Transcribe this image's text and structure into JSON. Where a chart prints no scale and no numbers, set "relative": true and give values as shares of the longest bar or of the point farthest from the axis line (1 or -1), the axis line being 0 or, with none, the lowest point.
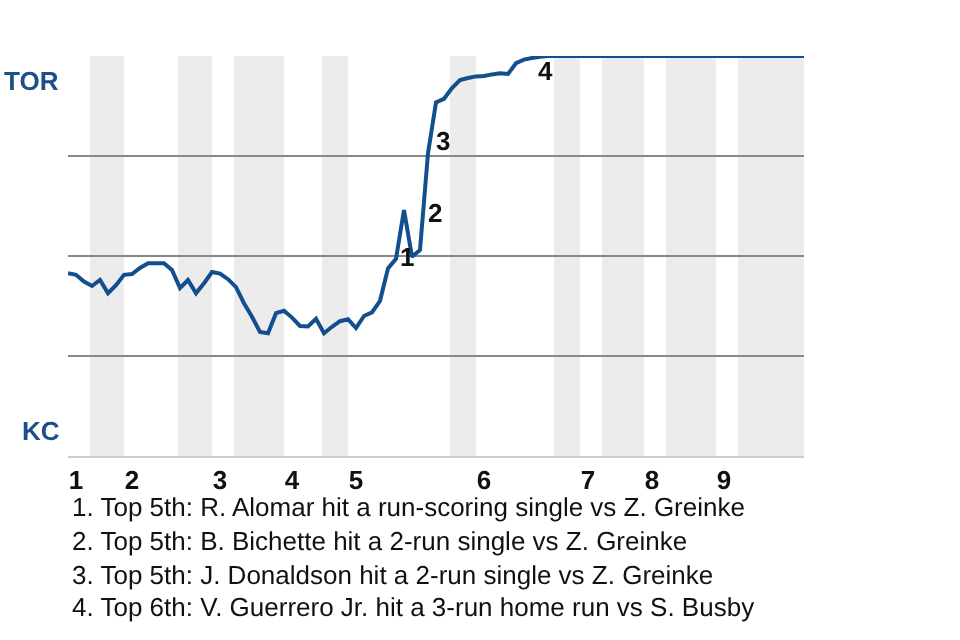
{
  "chart_data": {
    "type": "line",
    "relative": true,
    "categories": [
      null,
      "1",
      null,
      null,
      null,
      null,
      null,
      null,
      "2",
      null,
      null,
      null,
      null,
      null,
      null,
      null,
      null,
      null,
      null,
      "3",
      null,
      null,
      null,
      null,
      null,
      null,
      null,
      null,
      "4",
      null,
      null,
      null,
      null,
      null,
      null,
      null,
      "5",
      null,
      null,
      null,
      null,
      null,
      null,
      null,
      null,
      null,
      null,
      null,
      null,
      null,
      null,
      null,
      "6",
      null,
      null,
      null,
      null,
      null,
      null,
      null,
      null,
      null,
      null,
      null,
      null,
      "7",
      null,
      null,
      null,
      null,
      null,
      null,
      null,
      "8",
      null,
      null,
      null,
      null,
      null,
      null,
      null,
      null,
      "9",
      null,
      null,
      null,
      null,
      null,
      null,
      null,
      null,
      null,
      null
    ],
    "series": [
      {
        "color": "#134e8f",
        "values": [
          0.457,
          0.453,
          0.436,
          0.425,
          0.44,
          0.407,
          0.427,
          0.453,
          0.455,
          0.47,
          0.482,
          0.482,
          0.482,
          0.465,
          0.42,
          0.44,
          0.407,
          0.432,
          0.46,
          0.456,
          0.442,
          0.422,
          0.382,
          0.348,
          0.31,
          0.307,
          0.357,
          0.363,
          0.346,
          0.325,
          0.324,
          0.343,
          0.307,
          0.323,
          0.337,
          0.342,
          0.32,
          0.35,
          0.359,
          0.388,
          0.469,
          0.493,
          0.615,
          0.498,
          0.515,
          0.757,
          0.884,
          0.893,
          0.92,
          0.94,
          0.945,
          0.949,
          0.95,
          0.954,
          0.957,
          0.955,
          0.982,
          0.991,
          0.995,
          0.998,
          1.0,
          1.0,
          1.0,
          1.0,
          1.0,
          1.0,
          1.0,
          1.0,
          1.0,
          1.0,
          1.0,
          1.0,
          1.0,
          1.0,
          1.0,
          1.0,
          1.0,
          1.0,
          1.0,
          1.0,
          1.0,
          1.0,
          1.0,
          1.0,
          1.0,
          1.0,
          1.0,
          1.0,
          1.0,
          1.0,
          1.0,
          1.0,
          1.0
        ]
      }
    ],
    "marker": "none",
    "line_style": "solid",
    "ref_lines": [
      {
        "axis": "y",
        "value": 0.25,
        "color": "#888888"
      },
      {
        "axis": "y",
        "value": 0.5,
        "color": "#888888"
      },
      {
        "axis": "y",
        "value": 0.75,
        "color": "#888888"
      }
    ],
    "annotations": [
      "TOR",
      "KC",
      "1",
      "2",
      "3",
      "4",
      "1. Top 5th: R. Alomar hit a run-scoring single vs Z. Greinke",
      "2. Top 5th: B. Bichette hit a 2-run single vs Z. Greinke",
      "3. Top 5th: J. Donaldson hit a 2-run single vs Z. Greinke",
      "4. Top 6th: V. Guerrero Jr. hit a 3-run home run vs S. Busby"
    ]
  }
}
